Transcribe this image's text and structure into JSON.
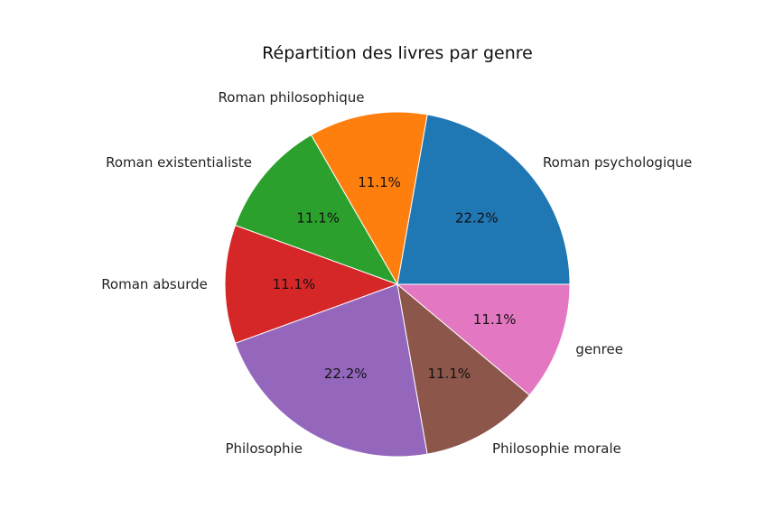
{
  "chart_data": {
    "type": "pie",
    "title": "Répartition des livres par genre",
    "autopct_format": "%1.1f%%",
    "start_angle_deg": 0,
    "direction": "counterclockwise",
    "slices": [
      {
        "label": "Roman psychologique",
        "value": 2,
        "percent_label": "22.2%",
        "color": "#1f77b4"
      },
      {
        "label": "Roman philosophique",
        "value": 1,
        "percent_label": "11.1%",
        "color": "#ff7f0e"
      },
      {
        "label": "Roman existentialiste",
        "value": 1,
        "percent_label": "11.1%",
        "color": "#2ca02c"
      },
      {
        "label": "Roman absurde",
        "value": 1,
        "percent_label": "11.1%",
        "color": "#d62728"
      },
      {
        "label": "Philosophie",
        "value": 2,
        "percent_label": "22.2%",
        "color": "#9467bd"
      },
      {
        "label": "Philosophie morale",
        "value": 1,
        "percent_label": "11.1%",
        "color": "#8c564b"
      },
      {
        "label": "genree",
        "value": 1,
        "percent_label": "11.1%",
        "color": "#e377c2"
      }
    ]
  }
}
